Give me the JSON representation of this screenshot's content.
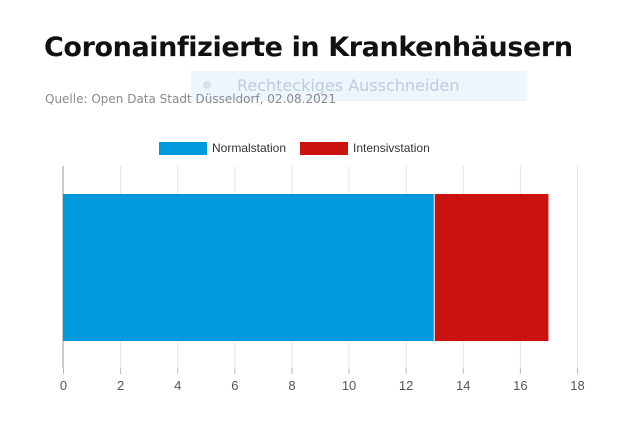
{
  "title": "Coronainfizierte in Krankenhäusern",
  "source": "Quelle: Open Data Stadt Düsseldorf, 02.08.2021",
  "overlay_tooltip": "Rechteckiges Ausschneiden",
  "chart_data": {
    "type": "bar",
    "orientation": "horizontal",
    "stacked": true,
    "categories": [
      ""
    ],
    "series": [
      {
        "name": "Normalstation",
        "values": [
          13
        ],
        "color": "#0099dd"
      },
      {
        "name": "Intensivstation",
        "values": [
          4
        ],
        "color": "#cc1111"
      }
    ],
    "xlim": [
      0,
      18
    ],
    "xticks": [
      0,
      2,
      4,
      6,
      8,
      10,
      12,
      14,
      16,
      18
    ],
    "grid": true,
    "legend": "top-center"
  }
}
